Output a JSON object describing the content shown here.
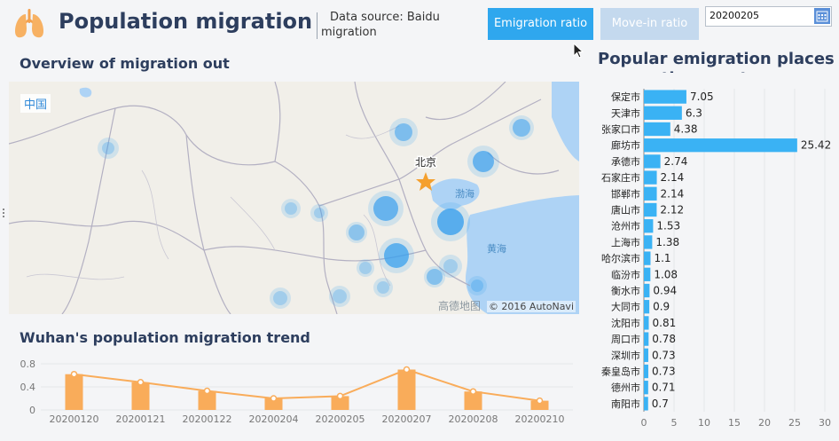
{
  "header": {
    "title": "Population migration",
    "source_line1": "Data source: Baidu",
    "source_line2": "migration",
    "btn_emigration": "Emigration ratio",
    "btn_movein": "Move-in ratio",
    "date_value": "20200205"
  },
  "map": {
    "section_title": "Overview of migration out",
    "country_label": "中国",
    "city_label": "北京",
    "sea_label_1": "渤海",
    "sea_label_2": "黄海",
    "watermark": "高德地图",
    "credit": "© 2016 AutoNavi",
    "colors": {
      "land": "#f1efe9",
      "water": "#aed3f5",
      "bubble": "#3aa0ee",
      "star": "#f5a02d"
    }
  },
  "bar_section": {
    "title": "Popular emigration places across the country"
  },
  "trend_section": {
    "title": "Wuhan's population migration trend"
  },
  "chart_data": [
    {
      "type": "bar",
      "orientation": "horizontal",
      "categories": [
        "保定市",
        "天津市",
        "张家口市",
        "廊坊市",
        "承德市",
        "石家庄市",
        "邯郸市",
        "唐山市",
        "沧州市",
        "上海市",
        "哈尔滨市",
        "临汾市",
        "衡水市",
        "大同市",
        "沈阳市",
        "周口市",
        "深圳市",
        "秦皇岛市",
        "德州市",
        "南阳市"
      ],
      "values": [
        7.05,
        6.3,
        4.38,
        25.42,
        2.74,
        2.14,
        2.14,
        2.12,
        1.53,
        1.38,
        1.1,
        1.08,
        0.94,
        0.9,
        0.81,
        0.78,
        0.73,
        0.73,
        0.71,
        0.7
      ],
      "xlim": [
        0,
        30
      ],
      "xticks": [
        "0",
        "5",
        "10",
        "15",
        "20",
        "25",
        "30"
      ],
      "color": "#3ab2f4"
    },
    {
      "type": "bar",
      "overlay": "line",
      "categories": [
        "20200120",
        "20200121",
        "20200122",
        "20200204",
        "20200205",
        "20200207",
        "20200208",
        "20200210"
      ],
      "values": [
        0.62,
        0.48,
        0.33,
        0.2,
        0.24,
        0.7,
        0.32,
        0.16
      ],
      "ylim": [
        0,
        0.8
      ],
      "yticks": [
        "0",
        "0.4",
        "0.8"
      ],
      "color": "#f9ac5a"
    }
  ]
}
